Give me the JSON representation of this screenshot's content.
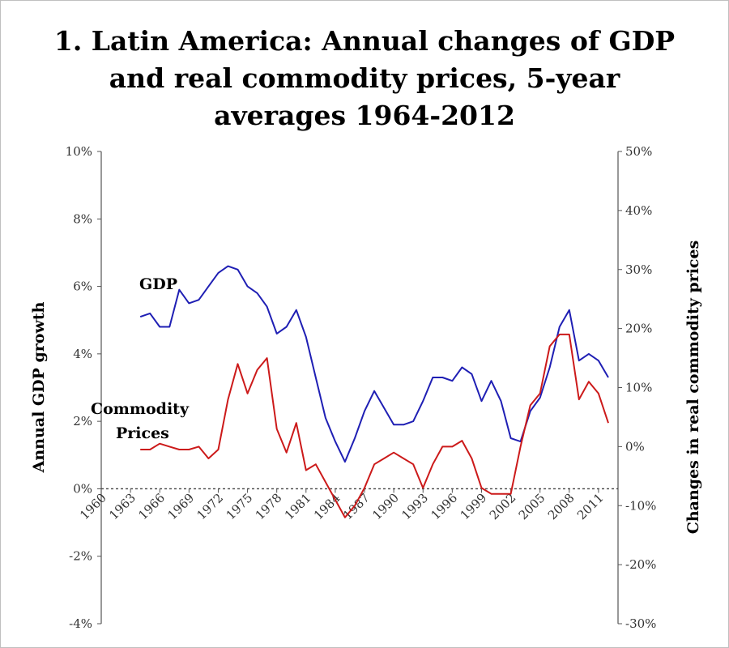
{
  "chart_data": {
    "type": "line",
    "title_lines": [
      "1. Latin America: Annual changes of GDP",
      "and real commodity prices, 5-year",
      "averages 1964-2012"
    ],
    "ylabel": "Annual GDP growth",
    "y2label": "Changes in real commodity prices",
    "ylim": [
      -4,
      10
    ],
    "y2lim": [
      -30,
      50
    ],
    "y_ticks": [
      "-4%",
      "-2%",
      "0%",
      "2%",
      "4%",
      "6%",
      "8%",
      "10%"
    ],
    "y2_ticks": [
      "-30%",
      "-20%",
      "-10%",
      "0%",
      "10%",
      "20%",
      "30%",
      "40%",
      "50%"
    ],
    "x_ticks": [
      "1960",
      "1963",
      "1966",
      "1969",
      "1972",
      "1975",
      "1978",
      "1981",
      "1984",
      "1987",
      "1990",
      "1993",
      "1996",
      "1999",
      "2002",
      "2005",
      "2008",
      "2011"
    ],
    "xlim": [
      1960,
      2013
    ],
    "grid": false,
    "colors": {
      "gdp": "#1f1fb4",
      "commodity": "#cc1a1a"
    },
    "series": [
      {
        "name": "GDP",
        "axis": "left",
        "x": [
          1964,
          1965,
          1966,
          1967,
          1968,
          1969,
          1970,
          1971,
          1972,
          1973,
          1974,
          1975,
          1976,
          1977,
          1978,
          1979,
          1980,
          1981,
          1982,
          1983,
          1984,
          1985,
          1986,
          1987,
          1988,
          1989,
          1990,
          1991,
          1992,
          1993,
          1994,
          1995,
          1996,
          1997,
          1998,
          1999,
          2000,
          2001,
          2002,
          2003,
          2004,
          2005,
          2006,
          2007,
          2008,
          2009,
          2010,
          2011,
          2012
        ],
        "values": [
          5.1,
          5.2,
          4.8,
          4.8,
          5.9,
          5.5,
          5.6,
          6.0,
          6.4,
          6.6,
          6.5,
          6.0,
          5.8,
          5.4,
          4.6,
          4.8,
          5.3,
          4.5,
          3.3,
          2.1,
          1.4,
          0.8,
          1.5,
          2.3,
          2.9,
          2.4,
          1.9,
          1.9,
          2.0,
          2.6,
          3.3,
          3.3,
          3.2,
          3.6,
          3.4,
          2.6,
          3.2,
          2.6,
          1.5,
          1.4,
          2.3,
          2.7,
          3.6,
          4.8,
          5.3,
          3.8,
          4.0,
          3.8,
          3.3
        ]
      },
      {
        "name": "Commodity Prices",
        "axis": "right",
        "x": [
          1964,
          1965,
          1966,
          1967,
          1968,
          1969,
          1970,
          1971,
          1972,
          1973,
          1974,
          1975,
          1976,
          1977,
          1978,
          1979,
          1980,
          1981,
          1982,
          1983,
          1984,
          1985,
          1986,
          1987,
          1988,
          1989,
          1990,
          1991,
          1992,
          1993,
          1994,
          1995,
          1996,
          1997,
          1998,
          1999,
          2000,
          2001,
          2002,
          2003,
          2004,
          2005,
          2006,
          2007,
          2008,
          2009,
          2010,
          2011,
          2012
        ],
        "values": [
          -0.5,
          -0.5,
          0.5,
          0,
          -0.5,
          -0.5,
          0,
          -2,
          -0.5,
          8,
          14,
          9,
          13,
          15,
          3,
          -1,
          4,
          -4,
          -3,
          -6,
          -9,
          -12,
          -10,
          -7,
          -3,
          -2,
          -1,
          -2,
          -3,
          -7,
          -3,
          0,
          0,
          1,
          -2,
          -7,
          -8,
          -8,
          -8,
          0,
          7,
          9,
          17,
          19,
          19,
          8,
          11,
          9,
          4
        ]
      }
    ]
  },
  "series_labels": {
    "gdp": "GDP",
    "commodity_line1": "Commodity",
    "commodity_line2": "Prices"
  }
}
